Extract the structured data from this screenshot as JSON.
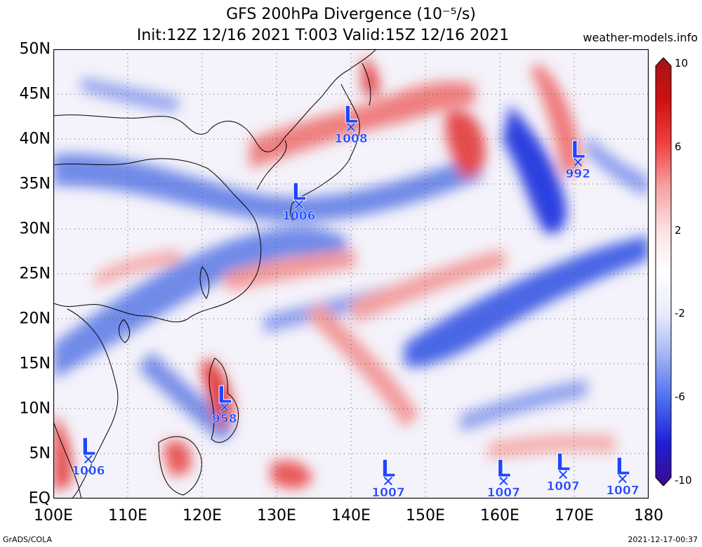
{
  "title": {
    "line1": "GFS 200hPa Divergence (10⁻⁵/s)",
    "line2": "Init:12Z 12/16 2021 T:003 Valid:15Z 12/16 2021",
    "site": "weather-models.info"
  },
  "axes": {
    "lat_labels": [
      "50N",
      "45N",
      "40N",
      "35N",
      "30N",
      "25N",
      "20N",
      "15N",
      "10N",
      "5N",
      "EQ"
    ],
    "lat_values": [
      50,
      45,
      40,
      35,
      30,
      25,
      20,
      15,
      10,
      5,
      0
    ],
    "lon_labels": [
      "100E",
      "110E",
      "120E",
      "130E",
      "140E",
      "150E",
      "160E",
      "170E",
      "180"
    ],
    "lon_values": [
      100,
      110,
      120,
      130,
      140,
      150,
      160,
      170,
      180
    ],
    "lon_range": [
      100,
      180
    ],
    "lat_range": [
      0,
      50
    ],
    "grid": true
  },
  "colorbar": {
    "labels": [
      "10",
      "6",
      "2",
      "-2",
      "-6",
      "-10"
    ],
    "range": [
      -10,
      10
    ],
    "colors": [
      "#3b0a8a",
      "#1f1fd6",
      "#4a6cf0",
      "#9fb0f5",
      "#e8ebfb",
      "#ffffff",
      "#fbe0e0",
      "#f5a0a0",
      "#f04040",
      "#d01010",
      "#a01515"
    ]
  },
  "lows": [
    {
      "lon": 140,
      "lat": 41.2,
      "pressure": "1008"
    },
    {
      "lon": 133,
      "lat": 32.6,
      "pressure": "1006"
    },
    {
      "lon": 170.5,
      "lat": 37.3,
      "pressure": "992"
    },
    {
      "lon": 123,
      "lat": 10,
      "pressure": "958"
    },
    {
      "lon": 104.7,
      "lat": 4.2,
      "pressure": "1006"
    },
    {
      "lon": 145,
      "lat": 1.8,
      "pressure": "1007"
    },
    {
      "lon": 160.5,
      "lat": 1.8,
      "pressure": "1007"
    },
    {
      "lon": 168.5,
      "lat": 2.5,
      "pressure": "1007"
    },
    {
      "lon": 176.5,
      "lat": 2.0,
      "pressure": "1007"
    }
  ],
  "footer": {
    "left": "GrADS/COLA",
    "right": "2021-12-17-00:37"
  }
}
